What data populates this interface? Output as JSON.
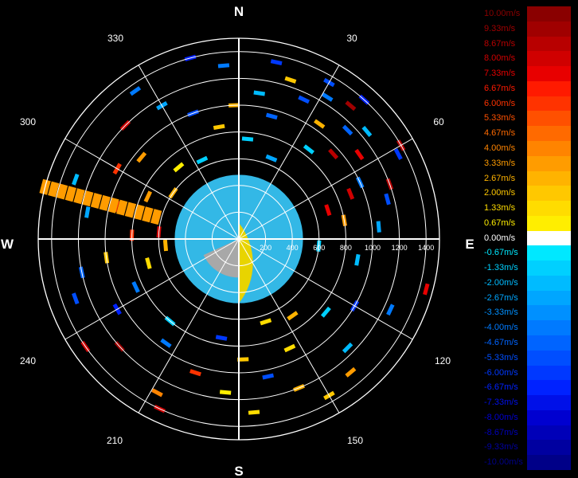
{
  "chart_data": {
    "type": "heatmap",
    "subtype": "polar-radial-velocity-ppi",
    "compass": {
      "north": "N",
      "south": "S",
      "east": "E",
      "west": "W"
    },
    "azimuth_labels": [
      "30",
      "60",
      "120",
      "150",
      "210",
      "240",
      "300",
      "330"
    ],
    "range_labels": [
      "200",
      "400",
      "600",
      "800",
      "1000",
      "1200",
      "1400"
    ],
    "range_max": 1500,
    "legend": {
      "labels": [
        "10.00m/s",
        "9.33m/s",
        "8.67m/s",
        "8.00m/s",
        "7.33m/s",
        "6.67m/s",
        "6.00m/s",
        "5.33m/s",
        "4.67m/s",
        "4.00m/s",
        "3.33m/s",
        "2.67m/s",
        "2.00m/s",
        "1.33m/s",
        "0.67m/s",
        "0.00m/s",
        "-0.67m/s",
        "-1.33m/s",
        "-2.00m/s",
        "-2.67m/s",
        "-3.33m/s",
        "-4.00m/s",
        "-4.67m/s",
        "-5.33m/s",
        "-6.00m/s",
        "-6.67m/s",
        "-7.33m/s",
        "-8.00m/s",
        "-8.67m/s",
        "-9.33m/s",
        "-10.00m/s"
      ],
      "colors": [
        "#8a0000",
        "#a00000",
        "#b80000",
        "#d00000",
        "#e80000",
        "#ff1a00",
        "#ff3300",
        "#ff5000",
        "#ff6a00",
        "#ff8400",
        "#ff9c00",
        "#ffb300",
        "#ffc800",
        "#ffdc00",
        "#ffee00",
        "#ffffff",
        "#00e8ff",
        "#00d0ff",
        "#00bbff",
        "#00a6ff",
        "#0090ff",
        "#007aff",
        "#0064ff",
        "#004eff",
        "#0038ff",
        "#0022ff",
        "#0010e8",
        "#0000d0",
        "#0000b8",
        "#0000a0",
        "#000088"
      ]
    },
    "gates": [
      {
        "az": 30,
        "r": 1350,
        "v": -5.3
      },
      {
        "az": 32,
        "r": 1250,
        "v": -4.0
      },
      {
        "az": 35,
        "r": 1050,
        "v": 2.7
      },
      {
        "az": 38,
        "r": 850,
        "v": -1.3
      },
      {
        "az": 40,
        "r": 1300,
        "v": 9.3
      },
      {
        "az": 42,
        "r": 1400,
        "v": -6.7
      },
      {
        "az": 45,
        "r": 1150,
        "v": -4.7
      },
      {
        "az": 48,
        "r": 950,
        "v": 8.7
      },
      {
        "az": 50,
        "r": 1250,
        "v": -2.0
      },
      {
        "az": 55,
        "r": 1100,
        "v": 7.3
      },
      {
        "az": 60,
        "r": 1400,
        "v": 8.7
      },
      {
        "az": 62,
        "r": 1350,
        "v": -6.0
      },
      {
        "az": 65,
        "r": 1000,
        "v": -4.0
      },
      {
        "az": 68,
        "r": 900,
        "v": 8.0
      },
      {
        "az": 70,
        "r": 1200,
        "v": 8.7
      },
      {
        "az": 72,
        "r": 700,
        "v": 7.3
      },
      {
        "az": 75,
        "r": 1150,
        "v": -5.3
      },
      {
        "az": 80,
        "r": 800,
        "v": 3.3
      },
      {
        "az": 85,
        "r": 1050,
        "v": -2.7
      },
      {
        "az": 95,
        "r": 600,
        "v": -1.3
      },
      {
        "az": 100,
        "r": 900,
        "v": -2.0
      },
      {
        "az": 105,
        "r": 1450,
        "v": 7.3
      },
      {
        "az": 115,
        "r": 1250,
        "v": -4.0
      },
      {
        "az": 120,
        "r": 1000,
        "v": -6.0
      },
      {
        "az": 130,
        "r": 850,
        "v": -1.3
      },
      {
        "az": 135,
        "r": 1150,
        "v": -2.0
      },
      {
        "az": 140,
        "r": 1300,
        "v": 3.3
      },
      {
        "az": 145,
        "r": 700,
        "v": 2.7
      },
      {
        "az": 150,
        "r": 1350,
        "v": 2.0
      },
      {
        "az": 155,
        "r": 900,
        "v": 1.3
      },
      {
        "az": 158,
        "r": 1200,
        "v": 2.7
      },
      {
        "az": 162,
        "r": 650,
        "v": 1.3
      },
      {
        "az": 168,
        "r": 1050,
        "v": -5.3
      },
      {
        "az": 175,
        "r": 1300,
        "v": 1.3
      },
      {
        "az": 178,
        "r": 900,
        "v": 2.0
      },
      {
        "az": 185,
        "r": 1150,
        "v": 0.67
      },
      {
        "az": 190,
        "r": 750,
        "v": -6.0
      },
      {
        "az": 198,
        "r": 1050,
        "v": 6.0
      },
      {
        "az": 205,
        "r": 1400,
        "v": 8.0
      },
      {
        "az": 208,
        "r": 1300,
        "v": 4.0
      },
      {
        "az": 215,
        "r": 950,
        "v": -4.0
      },
      {
        "az": 220,
        "r": 800,
        "v": -1.3
      },
      {
        "az": 228,
        "r": 1200,
        "v": 9.3
      },
      {
        "az": 235,
        "r": 1400,
        "v": 8.0
      },
      {
        "az": 240,
        "r": 1050,
        "v": -6.7
      },
      {
        "az": 245,
        "r": 850,
        "v": -4.0
      },
      {
        "az": 250,
        "r": 1300,
        "v": -5.3
      },
      {
        "az": 255,
        "r": 700,
        "v": 1.3
      },
      {
        "az": 258,
        "r": 1200,
        "v": -4.7
      },
      {
        "az": 262,
        "r": 1000,
        "v": 2.0
      },
      {
        "az": 265,
        "r": 550,
        "v": 2.7
      },
      {
        "az": 272,
        "r": 800,
        "v": 6.0
      },
      {
        "az": 275,
        "r": 600,
        "v": 8.0
      },
      {
        "az": 280,
        "r": 1150,
        "v": -2.7
      },
      {
        "az": 285,
        "r": 950,
        "v": 6.0
      },
      {
        "az": 290,
        "r": 1300,
        "v": -2.0
      },
      {
        "az": 295,
        "r": 750,
        "v": 3.3
      },
      {
        "az": 300,
        "r": 1050,
        "v": 6.0
      },
      {
        "az": 305,
        "r": 600,
        "v": 2.7
      },
      {
        "az": 310,
        "r": 950,
        "v": 3.3
      },
      {
        "az": 315,
        "r": 1200,
        "v": 8.0
      },
      {
        "az": 320,
        "r": 700,
        "v": 0.67
      },
      {
        "az": 325,
        "r": 1350,
        "v": -4.0
      },
      {
        "az": 330,
        "r": 1150,
        "v": -2.7
      },
      {
        "az": 335,
        "r": 650,
        "v": -1.3
      },
      {
        "az": 340,
        "r": 1000,
        "v": -5.3
      },
      {
        "az": 345,
        "r": 1400,
        "v": -6.7
      },
      {
        "az": 350,
        "r": 850,
        "v": 2.0
      },
      {
        "az": 355,
        "r": 1300,
        "v": -4.0
      },
      {
        "az": 358,
        "r": 1000,
        "v": 2.7
      },
      {
        "az": 5,
        "r": 750,
        "v": -1.3
      },
      {
        "az": 8,
        "r": 1100,
        "v": -2.0
      },
      {
        "az": 12,
        "r": 1350,
        "v": -6.0
      },
      {
        "az": 15,
        "r": 950,
        "v": -4.7
      },
      {
        "az": 18,
        "r": 1250,
        "v": 2.0
      },
      {
        "az": 22,
        "r": 650,
        "v": -2.7
      },
      {
        "az": 25,
        "r": 1150,
        "v": -5.3
      }
    ],
    "streak": {
      "az": 285,
      "r_start": 640,
      "r_end": 1500,
      "v": 3.3
    }
  }
}
